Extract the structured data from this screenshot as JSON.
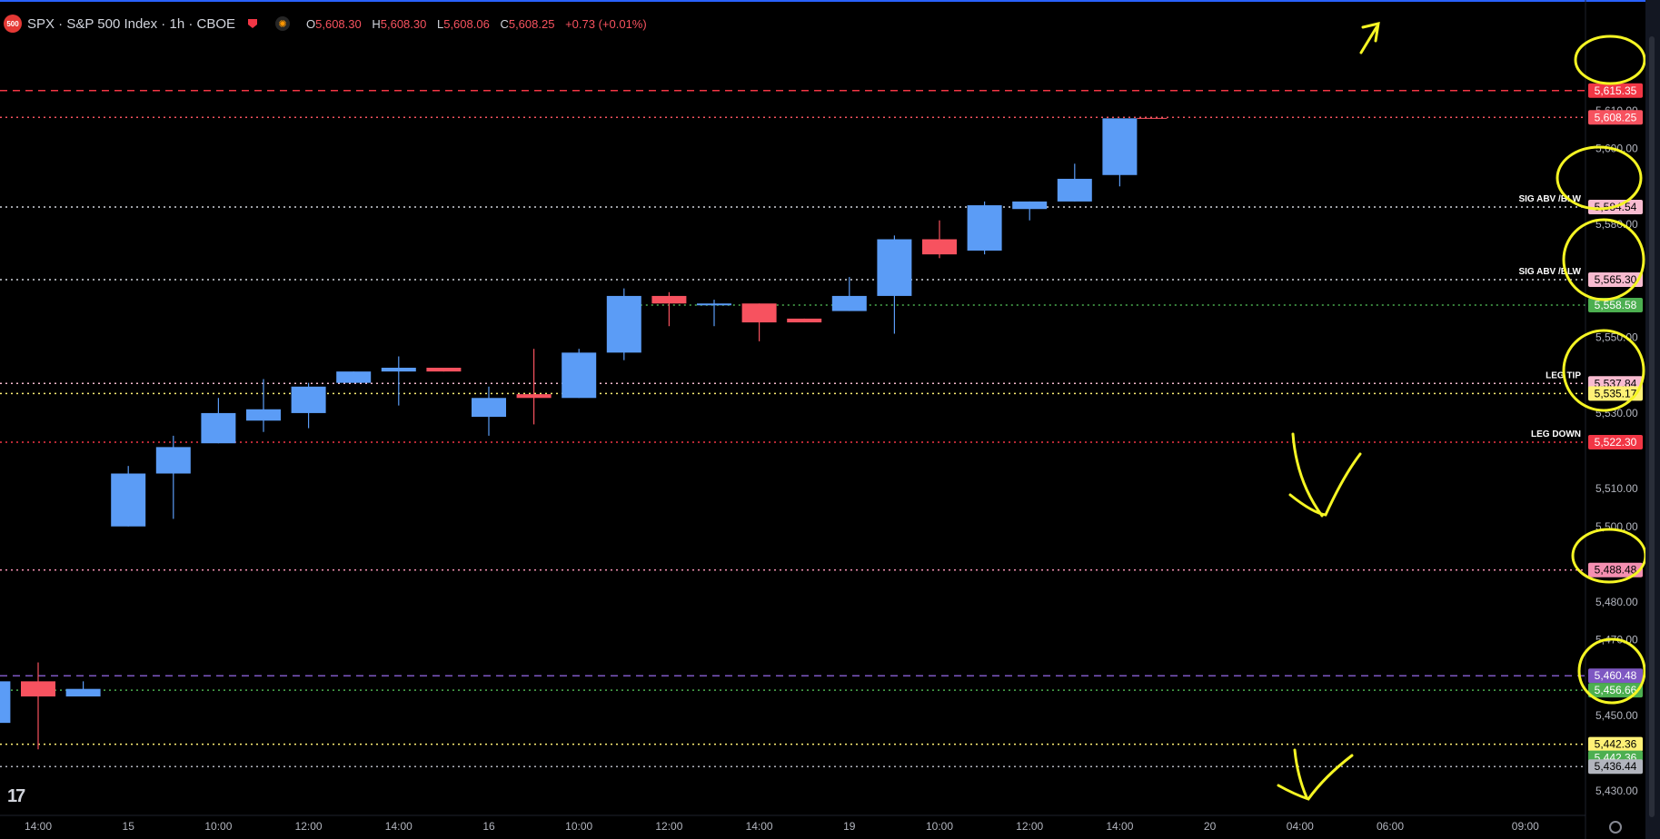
{
  "header": {
    "badge": "500",
    "title": "SPX · S&P 500 Index · 1h · CBOE",
    "ohlc": [
      {
        "k": "O",
        "v": "5,608.30"
      },
      {
        "k": "H",
        "v": "5,608.30"
      },
      {
        "k": "L",
        "v": "5,608.06"
      },
      {
        "k": "C",
        "v": "5,608.25"
      },
      {
        "k": "",
        "v": "+0.73 (+0.01%)"
      }
    ]
  },
  "chart_data": {
    "type": "candlestick",
    "ylim": [
      5424,
      5635
    ],
    "ticks_y": [
      {
        "label": "5,430.00",
        "value": 5430
      },
      {
        "label": "5,450.00",
        "value": 5450
      },
      {
        "label": "5,470.00",
        "value": 5470
      },
      {
        "label": "5,480.00",
        "value": 5480
      },
      {
        "label": "5,500.00",
        "value": 5500
      },
      {
        "label": "5,510.00",
        "value": 5510
      },
      {
        "label": "5,530.00",
        "value": 5530
      },
      {
        "label": "5,550.00",
        "value": 5550
      },
      {
        "label": "5,580.00",
        "value": 5580
      },
      {
        "label": "5,600.00",
        "value": 5600
      },
      {
        "label": "5,610.00",
        "value": 5610
      }
    ],
    "ticks_x": [
      {
        "label": "14:00",
        "index": 0
      },
      {
        "label": "15",
        "index": 2
      },
      {
        "label": "10:00",
        "index": 4
      },
      {
        "label": "12:00",
        "index": 6
      },
      {
        "label": "14:00",
        "index": 8
      },
      {
        "label": "16",
        "index": 10
      },
      {
        "label": "10:00",
        "index": 12
      },
      {
        "label": "12:00",
        "index": 14
      },
      {
        "label": "14:00",
        "index": 16
      },
      {
        "label": "19",
        "index": 18
      },
      {
        "label": "10:00",
        "index": 20
      },
      {
        "label": "12:00",
        "index": 22
      },
      {
        "label": "14:00",
        "index": 24
      },
      {
        "label": "20",
        "index": 26
      },
      {
        "label": "04:00",
        "index": 28
      },
      {
        "label": "06:00",
        "index": 30
      },
      {
        "label": "09:00",
        "index": 33
      }
    ],
    "candles": [
      {
        "i": -1,
        "o": 5448,
        "h": 5459,
        "l": 5445,
        "c": 5459
      },
      {
        "i": 0,
        "o": 5459,
        "h": 5464,
        "l": 5441,
        "c": 5455
      },
      {
        "i": 1,
        "o": 5455,
        "h": 5459,
        "l": 5455,
        "c": 5457
      },
      {
        "i": 2,
        "o": 5500,
        "h": 5516,
        "l": 5500,
        "c": 5514
      },
      {
        "i": 3,
        "o": 5514,
        "h": 5524,
        "l": 5502,
        "c": 5521
      },
      {
        "i": 4,
        "o": 5522,
        "h": 5534,
        "l": 5522,
        "c": 5530
      },
      {
        "i": 5,
        "o": 5528,
        "h": 5539,
        "l": 5525,
        "c": 5531
      },
      {
        "i": 6,
        "o": 5530,
        "h": 5538,
        "l": 5526,
        "c": 5537
      },
      {
        "i": 7,
        "o": 5538,
        "h": 5541,
        "l": 5538,
        "c": 5541
      },
      {
        "i": 8,
        "o": 5541,
        "h": 5545,
        "l": 5532,
        "c": 5542
      },
      {
        "i": 9,
        "o": 5542,
        "h": 5542,
        "l": 5541,
        "c": 5541
      },
      {
        "i": 10,
        "o": 5529,
        "h": 5537,
        "l": 5524,
        "c": 5534
      },
      {
        "i": 11,
        "o": 5535,
        "h": 5547,
        "l": 5527,
        "c": 5534
      },
      {
        "i": 12,
        "o": 5534,
        "h": 5547,
        "l": 5534,
        "c": 5546
      },
      {
        "i": 13,
        "o": 5546,
        "h": 5563,
        "l": 5544,
        "c": 5561
      },
      {
        "i": 14,
        "o": 5561,
        "h": 5562,
        "l": 5553,
        "c": 5559
      },
      {
        "i": 15,
        "o": 5559,
        "h": 5560,
        "l": 5553,
        "c": 5559
      },
      {
        "i": 16,
        "o": 5559,
        "h": 5559,
        "l": 5549,
        "c": 5554
      },
      {
        "i": 17,
        "o": 5555,
        "h": 5555,
        "l": 5554,
        "c": 5554
      },
      {
        "i": 18,
        "o": 5557,
        "h": 5566,
        "l": 5557,
        "c": 5561
      },
      {
        "i": 19,
        "o": 5561,
        "h": 5577,
        "l": 5551,
        "c": 5576
      },
      {
        "i": 20,
        "o": 5576,
        "h": 5581,
        "l": 5571,
        "c": 5572
      },
      {
        "i": 21,
        "o": 5573,
        "h": 5586,
        "l": 5572,
        "c": 5585
      },
      {
        "i": 22,
        "o": 5584,
        "h": 5586,
        "l": 5581,
        "c": 5586
      },
      {
        "i": 23,
        "o": 5586,
        "h": 5596,
        "l": 5586,
        "c": 5592
      },
      {
        "i": 24,
        "o": 5593,
        "h": 5608,
        "l": 5590,
        "c": 5608
      }
    ],
    "levels": [
      {
        "value": 5615.35,
        "label": "5,615.35",
        "color": "#f23645",
        "style": "dashed",
        "text": "",
        "text_color": "#ffffff"
      },
      {
        "value": 5608.25,
        "label": "5,608.25",
        "color": "#f7525f",
        "style": "dotted",
        "text": "",
        "text_color": "#ffffff"
      },
      {
        "value": 5584.54,
        "label": "5,584.54",
        "color": "#d1d4dc",
        "style": "dotted",
        "text": "SIG ABV /BLW",
        "text_color": "#000000",
        "box": "#f8bbd0"
      },
      {
        "value": 5565.3,
        "label": "5,565.30",
        "color": "#d1d4dc",
        "style": "dotted",
        "text": "SIG ABV /BLW",
        "text_color": "#000000",
        "box": "#f8bbd0"
      },
      {
        "value": 5558.58,
        "label": "5,558.58",
        "color": "#4caf50",
        "style": "dotted",
        "text": "",
        "text_color": "#ffffff",
        "start": 13
      },
      {
        "value": 5537.84,
        "label": "5,537.84",
        "color": "#f8bbd0",
        "style": "dotted",
        "text": "LEG TIP",
        "text_color": "#000000",
        "box": "#f8bbd0"
      },
      {
        "value": 5535.17,
        "label": "5,535.17",
        "color": "#fff176",
        "style": "dotted",
        "text": "",
        "text_color": "#000000",
        "box": "#fff176"
      },
      {
        "value": 5522.3,
        "label": "5,522.30",
        "color": "#f23645",
        "style": "dotted",
        "text": "LEG DOWN",
        "text_color": "#ffffff"
      },
      {
        "value": 5488.48,
        "label": "5,488.48",
        "color": "#f48fb1",
        "style": "dotted",
        "text": "",
        "text_color": "#000000",
        "box": "#f48fb1"
      },
      {
        "value": 5460.48,
        "label": "5,460.48",
        "color": "#7e57c2",
        "style": "dashed",
        "text": "",
        "text_color": "#ffffff"
      },
      {
        "value": 5456.66,
        "label": "5,456.66",
        "color": "#4caf50",
        "style": "dotted",
        "text": "",
        "text_color": "#ffffff"
      },
      {
        "value": 5442.36,
        "label": "5,442.36",
        "color": "#fff176",
        "style": "dotted",
        "text": "",
        "text_color": "#000000",
        "box": "#fff176"
      },
      {
        "value": 5442.36,
        "label": "5,442.36",
        "color": "#4caf50",
        "style": "none",
        "text": "",
        "text_color": "#ffffff",
        "stack": 1
      },
      {
        "value": 5436.44,
        "label": "5,436.44",
        "color": "#b2b5be",
        "style": "dotted",
        "text": "",
        "text_color": "#000000",
        "box": "#b2b5be"
      }
    ],
    "colors": {
      "up": "#5b9cf6",
      "down": "#f7525f",
      "background": "#000000",
      "text": "#b2b5be",
      "annotation": "#f5f523"
    }
  }
}
